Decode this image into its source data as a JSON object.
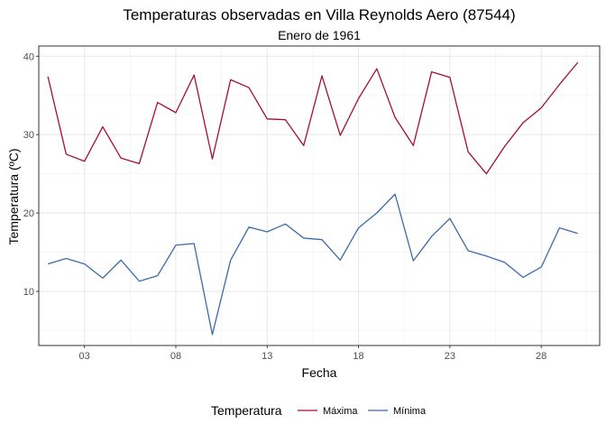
{
  "chart_data": {
    "type": "line",
    "title": "Temperaturas observadas en Villa Reynolds Aero (87544)",
    "subtitle": "Enero de 1961",
    "xlabel": "Fecha",
    "ylabel": "Temperatura (ºC)",
    "x_start_day": 1,
    "x_end_day": 30,
    "xlim": [
      0.5,
      31.2
    ],
    "ylim": [
      3.1,
      41.3
    ],
    "x_ticks": [
      {
        "day": 3,
        "label": "03"
      },
      {
        "day": 8,
        "label": "08"
      },
      {
        "day": 13,
        "label": "13"
      },
      {
        "day": 18,
        "label": "18"
      },
      {
        "day": 23,
        "label": "23"
      },
      {
        "day": 28,
        "label": "28"
      }
    ],
    "y_ticks": [
      10,
      20,
      30,
      40
    ],
    "grid": true,
    "legend": {
      "title": "Temperatura",
      "position": "bottom"
    },
    "series": [
      {
        "name": "Máxima",
        "color": "#a50f2d",
        "values": [
          37.4,
          27.5,
          26.6,
          31.0,
          27.0,
          26.3,
          34.1,
          32.8,
          37.6,
          26.9,
          37.0,
          36.0,
          32.0,
          31.9,
          28.6,
          37.5,
          29.9,
          34.6,
          38.4,
          32.2,
          28.6,
          38.0,
          37.3,
          27.8,
          25.0,
          28.5,
          31.5,
          33.4,
          36.4,
          39.2
        ]
      },
      {
        "name": "Mínima",
        "color": "#3b6ba8",
        "values": [
          13.5,
          14.2,
          13.5,
          11.7,
          14.0,
          11.3,
          12.0,
          15.9,
          16.1,
          4.5,
          14.0,
          18.2,
          17.6,
          18.6,
          16.8,
          16.6,
          14.0,
          18.1,
          20.0,
          22.4,
          13.9,
          17.0,
          19.3,
          15.2,
          14.5,
          13.7,
          11.8,
          13.1,
          18.1,
          17.4
        ]
      }
    ]
  }
}
